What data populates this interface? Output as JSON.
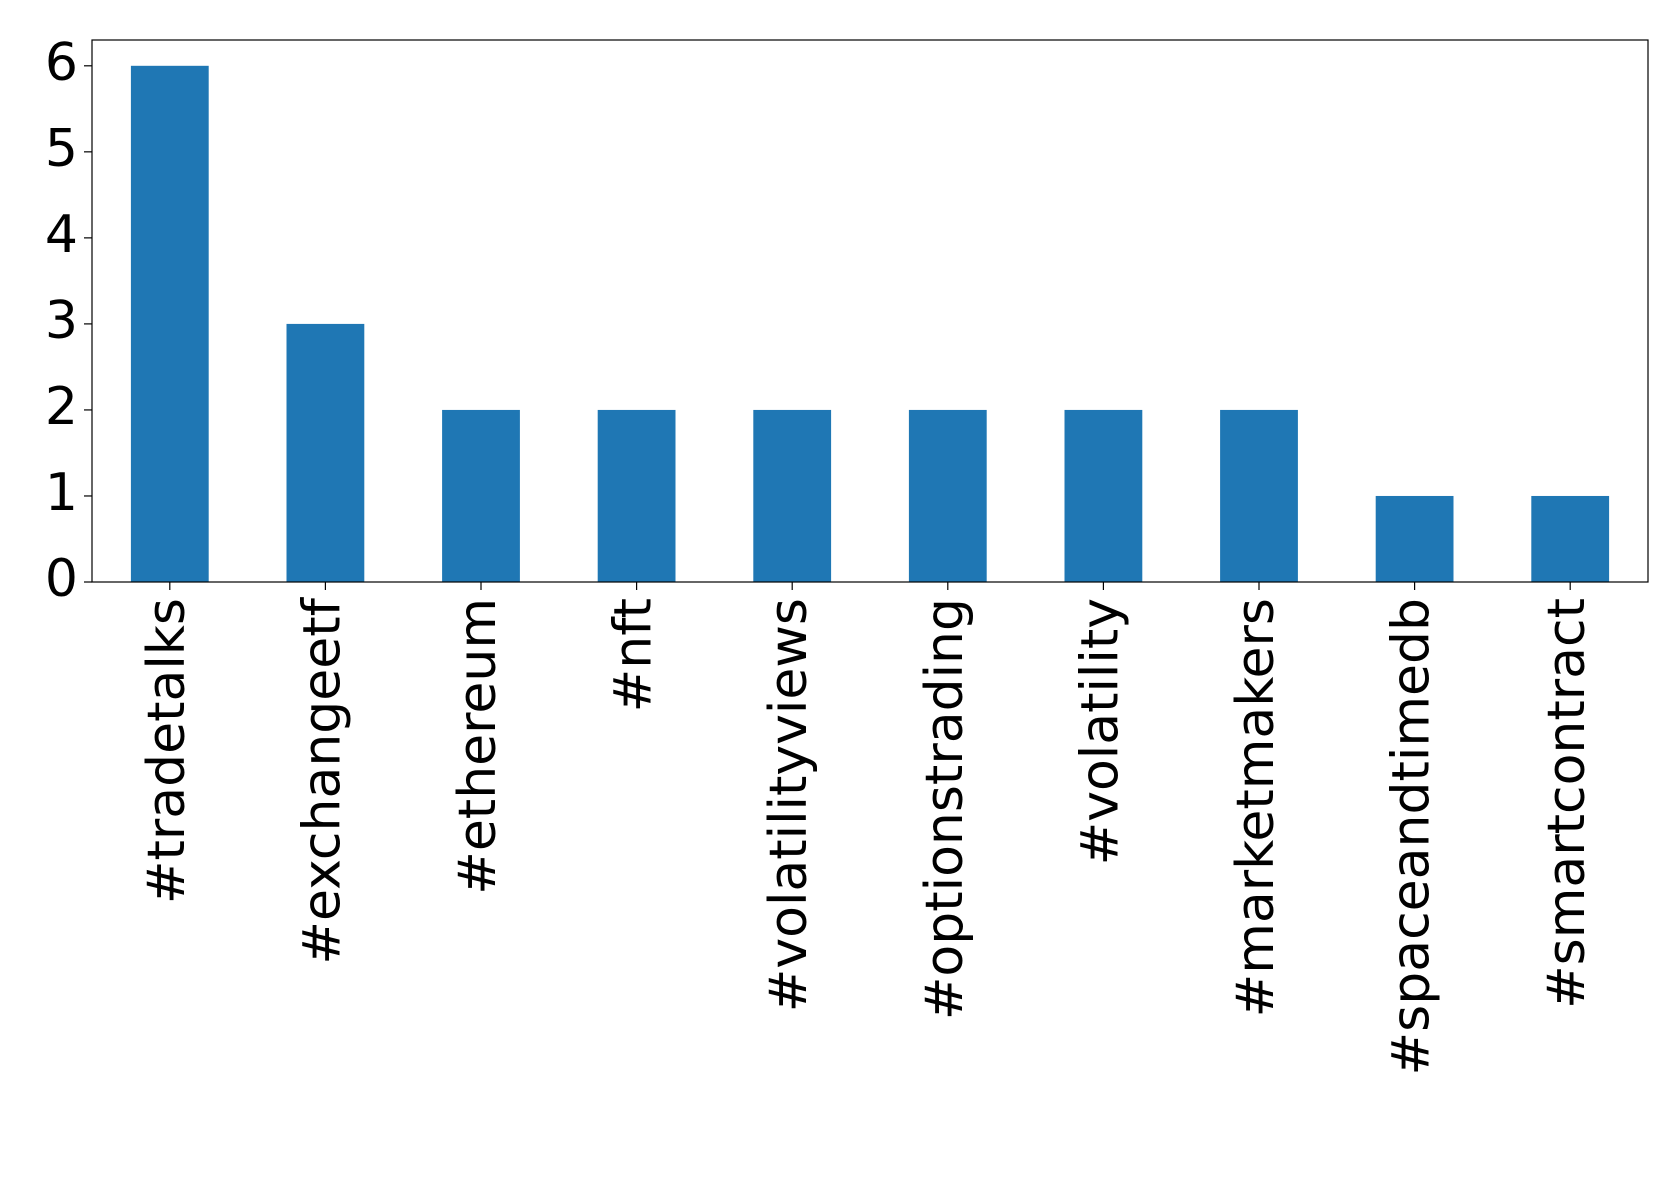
{
  "chart_data": {
    "type": "bar",
    "categories": [
      "#tradetalks",
      "#exchangeetf",
      "#ethereum",
      "#nft",
      "#volatilityviews",
      "#optionstrading",
      "#volatility",
      "#marketmakers",
      "#spaceandtimedb",
      "#smartcontract"
    ],
    "values": [
      6,
      3,
      2,
      2,
      2,
      2,
      2,
      2,
      1,
      1
    ],
    "color": "#1f77b4",
    "ylim": [
      0,
      6.3
    ],
    "yticks": [
      0,
      1,
      2,
      3,
      4,
      5,
      6
    ],
    "grid": false
  }
}
